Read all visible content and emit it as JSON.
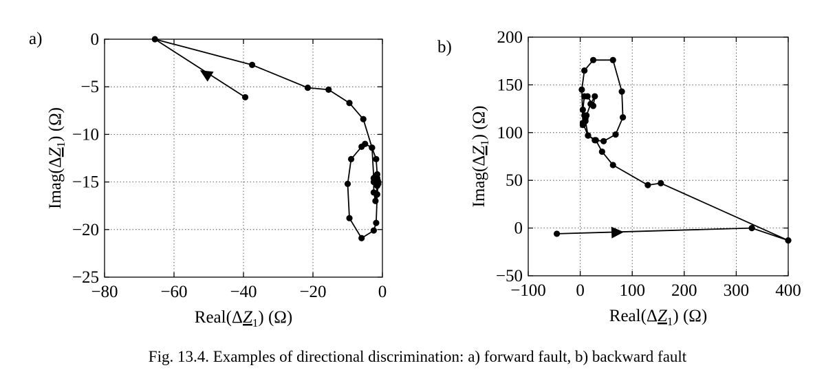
{
  "caption": "Fig. 13.4. Examples of directional discrimination: a) forward fault, b) backward fault",
  "chart_data": [
    {
      "type": "line",
      "panel_label": "a)",
      "xlabel": "Real(ΔZ1) (Ω)",
      "ylabel": "Imag(ΔZ1) (Ω)",
      "xlim": [
        -80,
        0
      ],
      "ylim": [
        -25,
        0
      ],
      "xticks": [
        -80,
        -60,
        -40,
        -20,
        0
      ],
      "yticks": [
        0,
        -5,
        -10,
        -15,
        -20,
        -25
      ],
      "xtick_labels": [
        "−80",
        "−60",
        "−40",
        "−20",
        "0"
      ],
      "ytick_labels": [
        "0",
        "−5",
        "−10",
        "−15",
        "−20",
        "−25"
      ],
      "grid": true,
      "marker": "circle",
      "arrow": {
        "from": [
          -41,
          -5.8
        ],
        "to": [
          -51,
          -3.6
        ],
        "direction": "toward start point"
      },
      "series": [
        {
          "x": [
            -39.5,
            -65.5,
            -37.5,
            -21.5,
            -15.5,
            -9.5,
            -5.5,
            -3.0,
            -1.8,
            -1.5,
            -1.2,
            -1.5,
            -1.8,
            -2.5,
            -6.0,
            -9.5,
            -10.0,
            -9.0,
            -6.0,
            -5.0,
            -3.0,
            -2.5,
            -2.5,
            -2.0,
            -1.5,
            -1.3,
            -1.5,
            -2.0,
            -2.5
          ],
          "y": [
            -6.1,
            0.0,
            -2.7,
            -5.1,
            -5.3,
            -6.7,
            -8.4,
            -11.4,
            -12.6,
            -14.2,
            -15.2,
            -16.3,
            -19.3,
            -20.1,
            -20.9,
            -18.8,
            -15.2,
            -12.6,
            -11.3,
            -11.0,
            -11.4,
            -14.6,
            -16.1,
            -17.0,
            -15.4,
            -14.9,
            -14.6,
            -14.4,
            -15.0
          ]
        }
      ]
    },
    {
      "type": "line",
      "panel_label": "b)",
      "xlabel": "Real(ΔZ1) (Ω)",
      "ylabel": "Imag(ΔZ1) (Ω)",
      "xlim": [
        -100,
        400
      ],
      "ylim": [
        -50,
        200
      ],
      "xticks": [
        -100,
        0,
        100,
        200,
        300,
        400
      ],
      "yticks": [
        200,
        150,
        100,
        50,
        0,
        -50
      ],
      "xtick_labels": [
        "−100",
        "0",
        "100",
        "200",
        "300",
        "400"
      ],
      "ytick_labels": [
        "200",
        "150",
        "100",
        "50",
        "0",
        "−50"
      ],
      "grid": true,
      "marker": "circle",
      "arrow": {
        "from": [
          45,
          -5
        ],
        "to": [
          72,
          -4.4
        ],
        "direction": "toward right"
      },
      "series": [
        {
          "x": [
            -45,
            330,
            400,
            155,
            130,
            63,
            42,
            30,
            15,
            5,
            3,
            8,
            25,
            63,
            80,
            82,
            68,
            45,
            28,
            15,
            10,
            8,
            5,
            8,
            14,
            25,
            28,
            20,
            12,
            5,
            10
          ],
          "y": [
            -6,
            0,
            -13,
            47,
            45,
            66,
            80,
            92,
            97,
            110,
            145,
            165,
            176,
            176,
            143,
            116,
            98,
            91,
            92,
            97,
            112,
            118,
            124,
            138,
            138,
            128,
            138,
            130,
            118,
            108,
            115
          ]
        }
      ]
    }
  ]
}
